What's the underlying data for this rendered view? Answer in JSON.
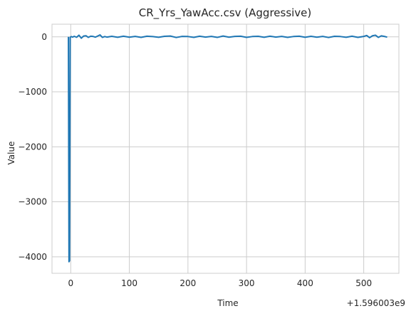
{
  "chart_data": {
    "type": "line",
    "title": "CR_Yrs_YawAcc.csv (Aggressive)",
    "xlabel": "Time",
    "ylabel": "Value",
    "x_offset_label": "+1.596003e9",
    "xlim": [
      -32,
      560
    ],
    "ylim": [
      -4300,
      230
    ],
    "x_ticks": [
      0,
      100,
      200,
      300,
      400,
      500
    ],
    "y_ticks": [
      0,
      -1000,
      -2000,
      -3000,
      -4000
    ],
    "grid": true,
    "colors": {
      "series": "#1f77b4",
      "grid": "#cccccc",
      "text": "#262626"
    },
    "series": [
      {
        "x": [
          -4,
          -3,
          -2,
          -1,
          0,
          1,
          3,
          6,
          10,
          14,
          18,
          22,
          26,
          30,
          34,
          38,
          42,
          46,
          50,
          54,
          58,
          62,
          70,
          80,
          90,
          100,
          110,
          120,
          130,
          140,
          150,
          160,
          170,
          180,
          190,
          200,
          210,
          220,
          230,
          240,
          250,
          260,
          270,
          280,
          290,
          300,
          310,
          320,
          330,
          340,
          350,
          360,
          370,
          380,
          390,
          400,
          410,
          420,
          430,
          440,
          450,
          460,
          470,
          480,
          490,
          500,
          505,
          510,
          515,
          520,
          525,
          530,
          535,
          540
        ],
        "y": [
          0,
          -4090,
          -4070,
          -10,
          0,
          5,
          -5,
          10,
          -8,
          30,
          -25,
          15,
          20,
          -10,
          12,
          8,
          -6,
          15,
          35,
          -10,
          6,
          -5,
          10,
          -8,
          12,
          -6,
          8,
          -10,
          12,
          5,
          -8,
          10,
          15,
          -12,
          8,
          6,
          -10,
          12,
          -5,
          8,
          -10,
          15,
          -6,
          8,
          12,
          -10,
          6,
          10,
          -8,
          12,
          -5,
          8,
          -10,
          6,
          12,
          -8,
          10,
          -6,
          8,
          -12,
          10,
          6,
          -8,
          12,
          -10,
          8,
          25,
          -15,
          20,
          30,
          -10,
          18,
          8,
          -5
        ]
      }
    ]
  }
}
